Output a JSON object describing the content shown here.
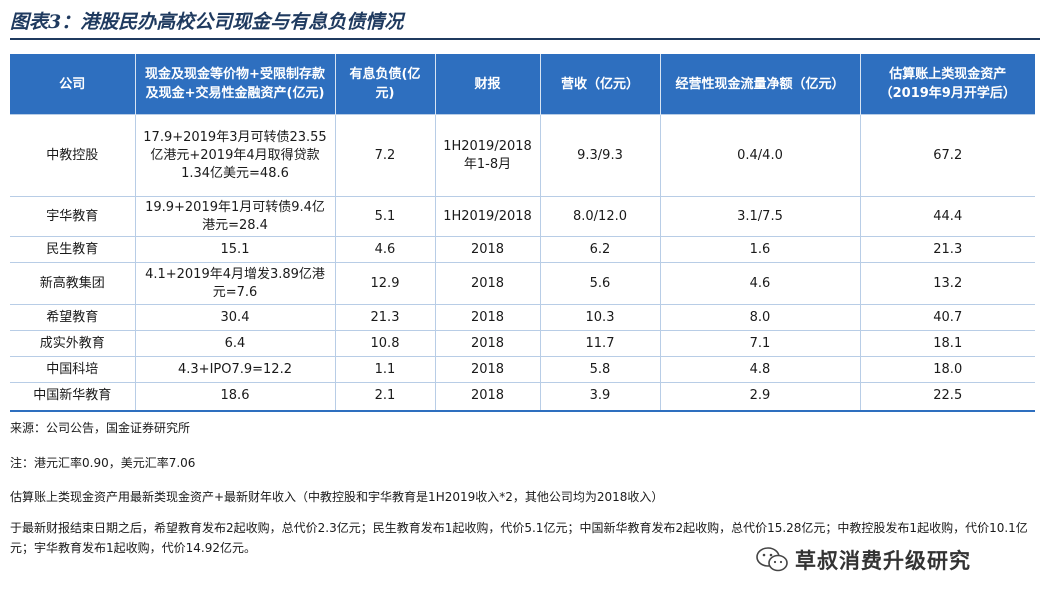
{
  "figure_title": "图表3：港股民办高校公司现金与有息负债情况",
  "table": {
    "headers": [
      "公司",
      "现金及现金等价物+受限制存款及现金+交易性金融资产(亿元)",
      "有息负债(亿元)",
      "财报",
      "营收（亿元）",
      "经营性现金流量净额（亿元）",
      "估算账上类现金资产（2019年9月开学后）"
    ],
    "rows": [
      [
        "中教控股",
        "17.9+2019年3月可转债23.55亿港元+2019年4月取得贷款1.34亿美元=48.6",
        "7.2",
        "1H2019/2018年1-8月",
        "9.3/9.3",
        "0.4/4.0",
        "67.2"
      ],
      [
        "宇华教育",
        "19.9+2019年1月可转债9.4亿港元=28.4",
        "5.1",
        "1H2019/2018",
        "8.0/12.0",
        "3.1/7.5",
        "44.4"
      ],
      [
        "民生教育",
        "15.1",
        "4.6",
        "2018",
        "6.2",
        "1.6",
        "21.3"
      ],
      [
        "新高教集团",
        "4.1+2019年4月增发3.89亿港元=7.6",
        "12.9",
        "2018",
        "5.6",
        "4.6",
        "13.2"
      ],
      [
        "希望教育",
        "30.4",
        "21.3",
        "2018",
        "10.3",
        "8.0",
        "40.7"
      ],
      [
        "成实外教育",
        "6.4",
        "10.8",
        "2018",
        "11.7",
        "7.1",
        "18.1"
      ],
      [
        "中国科培",
        "4.3+IPO7.9=12.2",
        "1.1",
        "2018",
        "5.8",
        "4.8",
        "18.0"
      ],
      [
        "中国新华教育",
        "18.6",
        "2.1",
        "2018",
        "3.9",
        "2.9",
        "22.5"
      ]
    ]
  },
  "notes": {
    "source": "来源：公司公告，国金证券研究所",
    "fx": "注：港元汇率0.90，美元汇率7.06",
    "method": "估算账上类现金资产用最新类现金资产+最新财年收入（中教控股和宇华教育是1H2019收入*2，其他公司均为2018收入）",
    "acquisitions": "于最新财报结束日期之后，希望教育发布2起收购，总代价2.3亿元；民生教育发布1起收购，代价5.1亿元；中国新华教育发布2起收购，总代价15.28亿元；中教控股发布1起收购，代价10.1亿元；宇华教育发布1起收购，代价14.92亿元。"
  },
  "watermark": {
    "icon": "wechat-icon",
    "text": "草叔消费升级研究"
  }
}
